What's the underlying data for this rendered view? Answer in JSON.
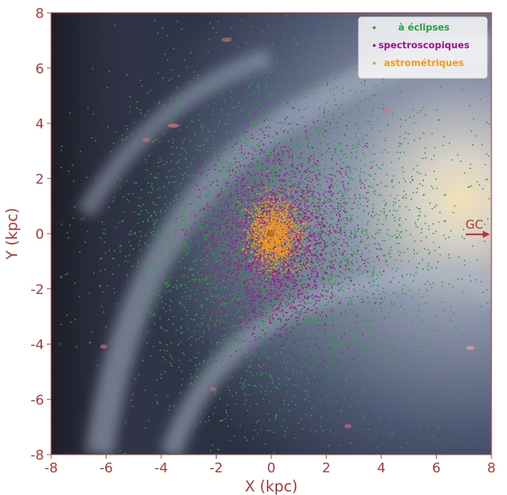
{
  "chart_data": {
    "type": "scatter",
    "title": "",
    "xlabel": "X (kpc)",
    "ylabel": "Y (kpc)",
    "xlim": [
      -8,
      8
    ],
    "ylim": [
      -8,
      8
    ],
    "x_ticks": [
      -8,
      -6,
      -4,
      -2,
      0,
      2,
      4,
      6,
      8
    ],
    "y_ticks": [
      -8,
      -6,
      -4,
      -2,
      0,
      2,
      4,
      6,
      8
    ],
    "tick_labels_x": [
      "-8",
      "-6",
      "-4",
      "-2",
      "0",
      "2",
      "4",
      "6",
      "8"
    ],
    "tick_labels_y": [
      "-8",
      "-6",
      "-4",
      "-2",
      "0",
      "2",
      "4",
      "6",
      "8"
    ],
    "grid": false,
    "legend_position": "top-right",
    "background": "Milky Way face-on artist image",
    "annotations": [
      {
        "text": "GC",
        "x": 7.2,
        "y": 0.25,
        "arrow": "right",
        "color": "#b03a3a"
      }
    ],
    "series": [
      {
        "name": "à éclipses",
        "color": "#2e9e3e",
        "distribution": {
          "center": [
            0.3,
            -0.3
          ],
          "sigma": [
            3.0,
            3.2
          ],
          "approx_points": 4200
        }
      },
      {
        "name": "spectroscopiques",
        "color": "#9b1a8a",
        "distribution": {
          "center": [
            0.2,
            -0.2
          ],
          "sigma": [
            1.3,
            1.7
          ],
          "approx_points": 2600
        }
      },
      {
        "name": "astrométriques",
        "color": "#f59a20",
        "distribution": {
          "center": [
            0.1,
            0.0
          ],
          "sigma": [
            0.45,
            0.6
          ],
          "approx_points": 1300
        }
      }
    ]
  }
}
